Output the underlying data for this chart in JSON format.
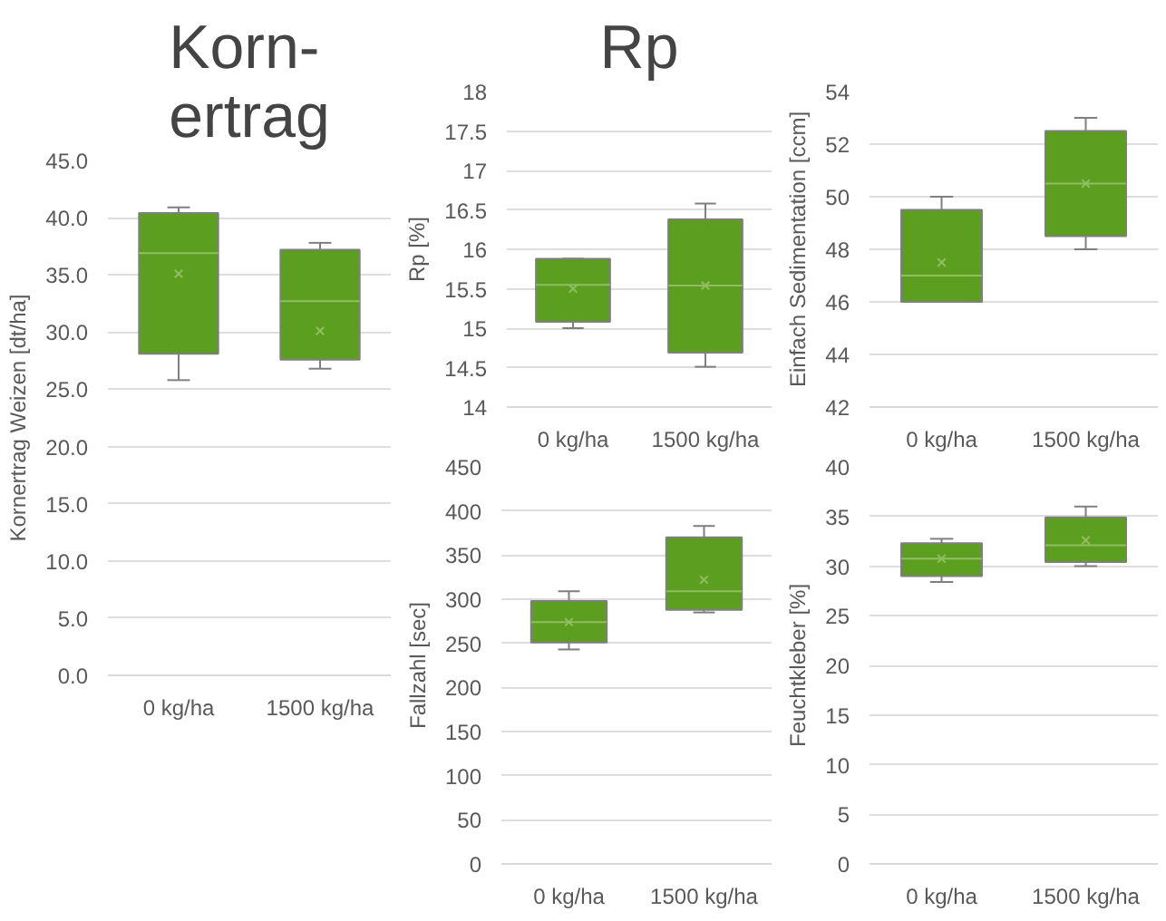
{
  "chart_data": [
    {
      "type": "box",
      "title": "Korn-\nertrag",
      "ylabel": "Kornertrag Weizen [dt/ha]",
      "categories": [
        "0 kg/ha",
        "1500 kg/ha"
      ],
      "color": "#5c9e1f",
      "marker": "cross",
      "grid": "y",
      "boxes": [
        {
          "low": 25.8,
          "q1": 28.1,
          "median": 36.9,
          "q3": 40.4,
          "high": 40.9,
          "mean": 35.1
        },
        {
          "low": 26.8,
          "q1": 27.6,
          "median": 32.7,
          "q3": 37.2,
          "high": 37.8,
          "mean": 30.1
        }
      ],
      "ylim": [
        0,
        45
      ],
      "yticks": [
        {
          "value": 0,
          "label": "0.0"
        },
        {
          "value": 5,
          "label": "5.0"
        },
        {
          "value": 10,
          "label": "10.0"
        },
        {
          "value": 15,
          "label": "15.0"
        },
        {
          "value": 20,
          "label": "20.0"
        },
        {
          "value": 25,
          "label": "25.0"
        },
        {
          "value": 30,
          "label": "30.0"
        },
        {
          "value": 35,
          "label": "35.0"
        },
        {
          "value": 40,
          "label": "40.0"
        },
        {
          "value": 45,
          "label": "45.0"
        }
      ]
    },
    {
      "type": "box",
      "title": "Rp",
      "ylabel": "Rp [%]",
      "categories": [
        "0 kg/ha",
        "1500 kg/ha"
      ],
      "color": "#5c9e1f",
      "marker": "cross",
      "grid": "y",
      "boxes": [
        {
          "low": 15.0,
          "q1": 15.08,
          "median": 15.55,
          "q3": 15.88,
          "high": 15.88,
          "mean": 15.5
        },
        {
          "low": 14.51,
          "q1": 14.69,
          "median": 15.54,
          "q3": 16.38,
          "high": 16.58,
          "mean": 15.54
        }
      ],
      "ylim": [
        14,
        18
      ],
      "yticks": [
        14,
        14.5,
        15,
        15.5,
        16,
        16.5,
        17,
        17.5,
        18
      ]
    },
    {
      "type": "box",
      "ylabel": "Einfach Sedimentation [ccm]",
      "categories": [
        "0 kg/ha",
        "1500 kg/ha"
      ],
      "color": "#5c9e1f",
      "marker": "cross",
      "grid": "y",
      "boxes": [
        {
          "low": 46,
          "q1": 46,
          "median": 47,
          "q3": 49.5,
          "high": 50,
          "mean": 47.5
        },
        {
          "low": 48,
          "q1": 48.5,
          "median": 50.5,
          "q3": 52.5,
          "high": 53,
          "mean": 50.5
        }
      ],
      "ylim": [
        42,
        54
      ],
      "yticks": [
        42,
        44,
        46,
        48,
        50,
        52,
        54
      ]
    },
    {
      "type": "box",
      "ylabel": "Fallzahl [sec]",
      "categories": [
        "0 kg/ha",
        "1500 kg/ha"
      ],
      "color": "#5c9e1f",
      "marker": "cross",
      "grid": "y",
      "boxes": [
        {
          "low": 243,
          "q1": 251,
          "median": 274,
          "q3": 298,
          "high": 309,
          "mean": 274
        },
        {
          "low": 285,
          "q1": 288,
          "median": 309,
          "q3": 370,
          "high": 383,
          "mean": 322
        }
      ],
      "ylim": [
        0,
        450
      ],
      "yticks": [
        0,
        50,
        100,
        150,
        200,
        250,
        300,
        350,
        400,
        450
      ]
    },
    {
      "type": "box",
      "ylabel": "Feuchtkleber [%]",
      "categories": [
        "0 kg/ha",
        "1500 kg/ha"
      ],
      "color": "#5c9e1f",
      "marker": "cross",
      "grid": "y",
      "boxes": [
        {
          "low": 28.4,
          "q1": 29.0,
          "median": 30.75,
          "q3": 32.3,
          "high": 32.75,
          "mean": 30.75
        },
        {
          "low": 30.0,
          "q1": 30.4,
          "median": 32.1,
          "q3": 34.9,
          "high": 36.0,
          "mean": 32.6
        }
      ],
      "ylim": [
        0,
        40
      ],
      "yticks": [
        0,
        5,
        10,
        15,
        20,
        25,
        30,
        35,
        40
      ]
    }
  ]
}
